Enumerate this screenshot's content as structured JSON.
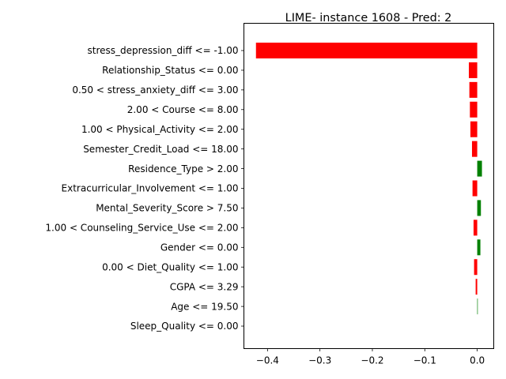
{
  "chart_data": {
    "type": "bar",
    "orientation": "horizontal",
    "title": "LIME- instance 1608 - Pred: 2",
    "xlabel": "",
    "ylabel": "",
    "xlim": [
      -0.445,
      0.0315
    ],
    "xticks": [
      -0.4,
      -0.3,
      -0.2,
      -0.1,
      0.0
    ],
    "xtick_labels": [
      "−0.4",
      "−0.3",
      "−0.2",
      "−0.1",
      "0.0"
    ],
    "grid": false,
    "categories": [
      "stress_depression_diff <= -1.00",
      "Relationship_Status <= 0.00",
      "0.50 < stress_anxiety_diff <= 3.00",
      "2.00 < Course <= 8.00",
      "1.00 < Physical_Activity <= 2.00",
      "Semester_Credit_Load <= 18.00",
      "Residence_Type > 2.00",
      "Extracurricular_Involvement <= 1.00",
      "Mental_Severity_Score > 7.50",
      "1.00 < Counseling_Service_Use <= 2.00",
      "Gender <= 0.00",
      "0.00 < Diet_Quality <= 1.00",
      "CGPA <= 3.29",
      "Age <= 19.50",
      "Sleep_Quality <= 0.00"
    ],
    "values": [
      -0.422,
      -0.016,
      -0.015,
      -0.014,
      -0.013,
      -0.01,
      0.009,
      -0.009,
      0.007,
      -0.007,
      0.006,
      -0.006,
      -0.003,
      0.001,
      0.0
    ],
    "colors": {
      "negative": "#ff0000",
      "positive": "#008000"
    }
  }
}
